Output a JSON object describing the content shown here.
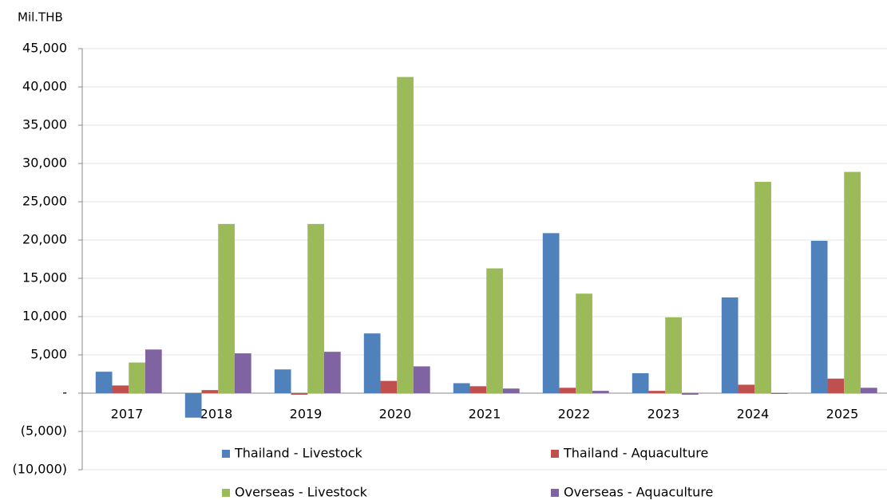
{
  "chart_data": {
    "type": "bar",
    "y_axis_label": "Mil.THB",
    "categories": [
      "2017",
      "2018",
      "2019",
      "2020",
      "2021",
      "2022",
      "2023",
      "2024",
      "2025"
    ],
    "series": [
      {
        "name": "Thailand - Livestock",
        "color": "#4f81bd",
        "values": [
          2800,
          -3200,
          3100,
          7800,
          1300,
          20900,
          2600,
          12500,
          19900
        ]
      },
      {
        "name": "Thailand - Aquaculture",
        "color": "#c0504d",
        "values": [
          1000,
          400,
          -200,
          1600,
          900,
          700,
          300,
          1100,
          1900
        ]
      },
      {
        "name": "Overseas - Livestock",
        "color": "#9bbb59",
        "values": [
          4000,
          22100,
          22100,
          41300,
          16300,
          13000,
          9900,
          27600,
          28900
        ]
      },
      {
        "name": "Overseas - Aquaculture",
        "color": "#8064a2",
        "values": [
          5700,
          5200,
          5400,
          3500,
          600,
          300,
          -200,
          -100,
          700
        ]
      }
    ],
    "ylim": [
      -10000,
      45000
    ],
    "yticks": [
      {
        "value": -10000,
        "label": "(10,000)"
      },
      {
        "value": -5000,
        "label": "(5,000)"
      },
      {
        "value": 0,
        "label": "-"
      },
      {
        "value": 5000,
        "label": "5,000"
      },
      {
        "value": 10000,
        "label": "10,000"
      },
      {
        "value": 15000,
        "label": "15,000"
      },
      {
        "value": 20000,
        "label": "20,000"
      },
      {
        "value": 25000,
        "label": "25,000"
      },
      {
        "value": 30000,
        "label": "30,000"
      },
      {
        "value": 35000,
        "label": "35,000"
      },
      {
        "value": 40000,
        "label": "40,000"
      },
      {
        "value": 45000,
        "label": "45,000"
      }
    ],
    "grid": true,
    "legend": "bottom"
  }
}
